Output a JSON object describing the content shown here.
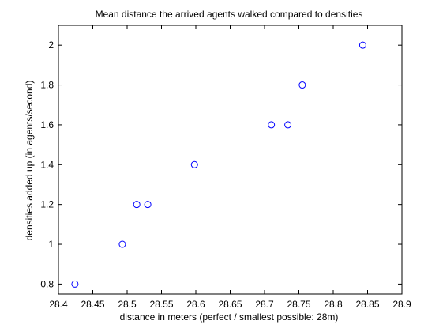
{
  "chart_data": {
    "type": "scatter",
    "title": "Mean distance the arrived agents walked compared to densities",
    "xlabel": "distance in meters (perfect / smallest possible: 28m)",
    "ylabel": "densities added up (in agents/second)",
    "xlim": [
      28.4,
      28.9
    ],
    "ylim": [
      0.75,
      2.1
    ],
    "xticks": [
      28.4,
      28.45,
      28.5,
      28.55,
      28.6,
      28.65,
      28.7,
      28.75,
      28.8,
      28.85,
      28.9
    ],
    "xtick_labels": [
      "28.4",
      "28.45",
      "28.5",
      "28.55",
      "28.6",
      "28.65",
      "28.7",
      "28.75",
      "28.8",
      "28.85",
      "28.9"
    ],
    "yticks": [
      0.8,
      1,
      1.2,
      1.4,
      1.6,
      1.8,
      2
    ],
    "ytick_labels": [
      "0.8",
      "1",
      "1.2",
      "1.4",
      "1.6",
      "1.8",
      "2"
    ],
    "grid": false,
    "marker": "circle-open",
    "marker_color": "#0000ff",
    "series": [
      {
        "x": [
          28.424,
          28.493,
          28.514,
          28.53,
          28.598,
          28.71,
          28.734,
          28.755,
          28.843
        ],
        "y": [
          0.8,
          1.0,
          1.2,
          1.2,
          1.4,
          1.6,
          1.6,
          1.8,
          2.0
        ]
      }
    ]
  }
}
